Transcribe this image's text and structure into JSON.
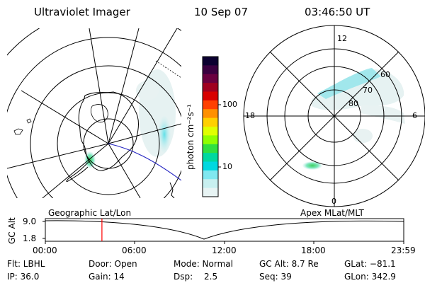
{
  "header": {
    "title": "Ultraviolet Imager",
    "date": "10 Sep 07",
    "time": "03:46:50 UT"
  },
  "colorbar": {
    "unit_label": "photon cm⁻²s⁻¹",
    "tick_100": "100",
    "tick_10": "10",
    "colors": [
      "#0b0030",
      "#3a0040",
      "#6a0040",
      "#a00020",
      "#d80000",
      "#ff4000",
      "#ff9000",
      "#ffd000",
      "#e0ff00",
      "#90ff00",
      "#30e040",
      "#00d8a0",
      "#00d8e0",
      "#80e8f0",
      "#c8f0f0",
      "#e8f4f4"
    ]
  },
  "geo_panel": {
    "label": "Geographic Lat/Lon"
  },
  "mag_panel": {
    "label": "Apex MLat/MLT",
    "mlt_12": "12",
    "mlt_18": "18",
    "mlt_6": "6",
    "mlt_0": "0",
    "lat_60": "60",
    "lat_70": "70",
    "lat_80": "80"
  },
  "altitude_plot": {
    "ylabel": "GC Alt",
    "y_max": "9.0",
    "y_min": "1.8",
    "x_ticks": [
      "00:00",
      "06:00",
      "12:00",
      "18:00",
      "23:59"
    ],
    "current_time_marker_fraction": 0.158
  },
  "status": {
    "flt": "Flt: LBHL",
    "door": "Door: Open",
    "mode": "Mode: Normal",
    "gcalt": "GC Alt: 8.7 Re",
    "glat": "GLat: −81.1",
    "ip": "IP: 36.0",
    "gain": "Gain: 14",
    "dsp_label": "Dsp:",
    "dsp_value": "2.5",
    "seq": "Seq: 39",
    "glon": "GLon: 342.9"
  }
}
